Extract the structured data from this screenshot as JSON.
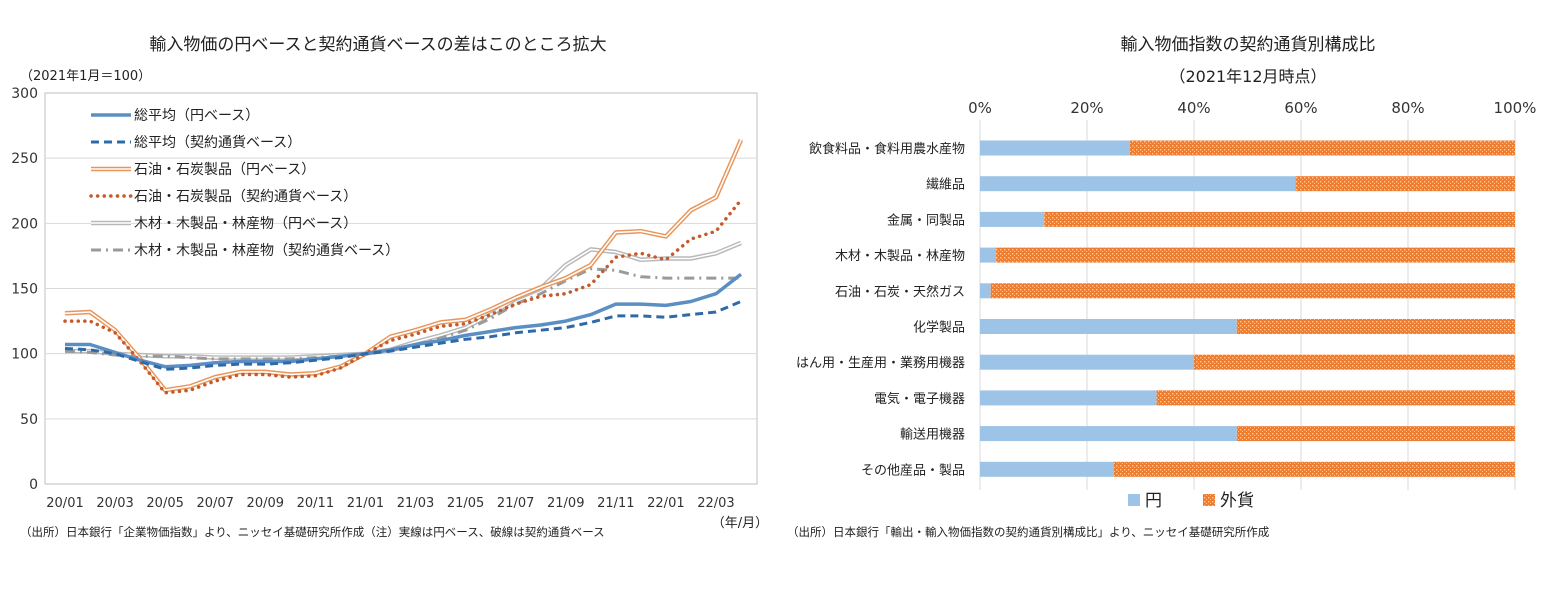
{
  "chart_data": [
    {
      "type": "line",
      "title": "輸入物価の円ベースと契約通貨ベースの差はこのところ拡大",
      "unit_note": "（2021年1月＝100）",
      "x_unit": "（年/月）",
      "ylim": [
        0,
        300
      ],
      "y_ticks": [
        "0",
        "50",
        "100",
        "150",
        "200",
        "250",
        "300"
      ],
      "x_ticks": [
        "20/01",
        "20/03",
        "20/05",
        "20/07",
        "20/09",
        "20/11",
        "21/01",
        "21/03",
        "21/05",
        "21/07",
        "21/09",
        "21/11",
        "22/01",
        "22/03"
      ],
      "grid": true,
      "legend_position": "top-left",
      "source": "（出所）日本銀行「企業物価指数」より、ニッセイ基礎研究所作成（注）実線は円ベース、破線は契約通貨ベース",
      "series": [
        {
          "name": "総平均（円ベース）",
          "color": "#5b8fc4",
          "style": "solid",
          "values": [
            107,
            107,
            101,
            95,
            90,
            91,
            93,
            94,
            94,
            94,
            96,
            98,
            100,
            103,
            107,
            110,
            114,
            117,
            120,
            122,
            125,
            130,
            138,
            138,
            137,
            140,
            146,
            161
          ]
        },
        {
          "name": "総平均（契約通貨ベース）",
          "color": "#2e6aa8",
          "style": "dashed",
          "values": [
            104,
            103,
            100,
            94,
            88,
            89,
            91,
            92,
            92,
            93,
            95,
            97,
            100,
            102,
            105,
            108,
            111,
            113,
            116,
            118,
            120,
            124,
            129,
            129,
            128,
            130,
            132,
            140
          ]
        },
        {
          "name": "石油・石炭製品（円ベース）",
          "color": "#e8955a",
          "style": "double",
          "values": [
            131,
            132,
            118,
            96,
            72,
            75,
            82,
            86,
            86,
            84,
            85,
            90,
            100,
            113,
            118,
            124,
            126,
            134,
            143,
            151,
            158,
            168,
            193,
            194,
            190,
            210,
            220,
            264
          ]
        },
        {
          "name": "石油・石炭製品（契約通貨ベース）",
          "color": "#c55a2a",
          "style": "dotted",
          "values": [
            125,
            125,
            116,
            94,
            70,
            72,
            79,
            84,
            84,
            82,
            83,
            89,
            100,
            110,
            115,
            121,
            123,
            130,
            138,
            144,
            146,
            153,
            174,
            177,
            172,
            188,
            194,
            218
          ]
        },
        {
          "name": "木材・木製品・林産物（円ベース）",
          "color": "#b8b8b8",
          "style": "double",
          "values": [
            102,
            102,
            100,
            99,
            98,
            98,
            97,
            97,
            97,
            97,
            98,
            99,
            100,
            103,
            109,
            114,
            120,
            130,
            142,
            150,
            168,
            180,
            178,
            172,
            173,
            173,
            177,
            185
          ]
        },
        {
          "name": "木材・木製品・林産物（契約通貨ベース）",
          "color": "#9a9a9a",
          "style": "dashdot",
          "values": [
            102,
            101,
            99,
            98,
            98,
            97,
            96,
            96,
            96,
            96,
            97,
            98,
            100,
            102,
            107,
            112,
            118,
            127,
            138,
            146,
            156,
            165,
            164,
            159,
            158,
            158,
            158,
            158
          ]
        }
      ]
    },
    {
      "type": "bar",
      "orientation": "horizontal",
      "stacked": true,
      "title": "輸入物価指数の契約通貨別構成比",
      "subtitle": "（2021年12月時点）",
      "xlim": [
        0,
        100
      ],
      "x_ticks": [
        "0%",
        "20%",
        "40%",
        "60%",
        "80%",
        "100%"
      ],
      "legend_position": "bottom",
      "source": "（出所）日本銀行「輸出・輸入物価指数の契約通貨別構成比」より、ニッセイ基礎研究所作成",
      "categories": [
        "飲食料品・食料用農水産物",
        "繊維品",
        "金属・同製品",
        "木材・木製品・林産物",
        "石油・石炭・天然ガス",
        "化学製品",
        "はん用・生産用・業務用機器",
        "電気・電子機器",
        "輸送用機器",
        "その他産品・製品"
      ],
      "series": [
        {
          "name": "円",
          "color": "#9dc3e6",
          "values": [
            28,
            59,
            12,
            3,
            2,
            48,
            40,
            33,
            48,
            25
          ]
        },
        {
          "name": "外貨",
          "color": "#ed7d31",
          "values": [
            72,
            41,
            88,
            97,
            98,
            52,
            60,
            67,
            52,
            75
          ]
        }
      ]
    }
  ]
}
